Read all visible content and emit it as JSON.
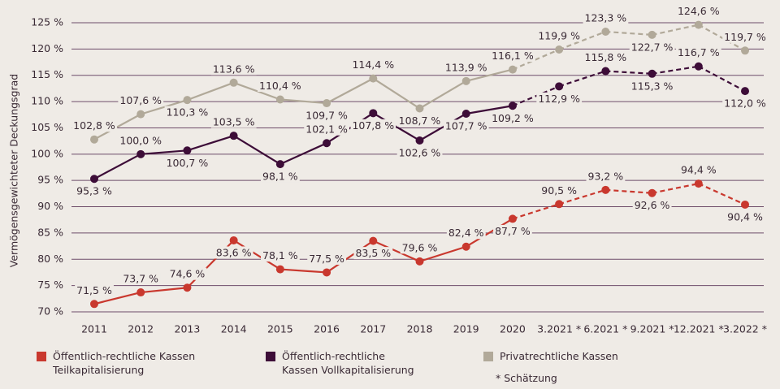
{
  "chart_data": {
    "type": "line",
    "y_label": "Vermögensgewichteter Deckungsgrad",
    "categories": [
      "2011",
      "2012",
      "2013",
      "2014",
      "2015",
      "2016",
      "2017",
      "2018",
      "2019",
      "2020",
      "3.2021 *",
      "6.2021 *",
      "9.2021 *",
      "12.2021 *",
      "3.2022 *"
    ],
    "series": [
      {
        "name": "Öffentlich-rechtliche Kassen Teilkapitalisierung",
        "color": "#c9382e",
        "values": [
          71.5,
          73.7,
          74.6,
          83.6,
          78.1,
          77.5,
          83.5,
          79.6,
          82.4,
          87.7,
          90.5,
          93.2,
          92.6,
          94.4,
          90.4
        ],
        "value_labels": [
          "71,5 %",
          "73,7 %",
          "74,6 %",
          "83,6 %",
          "78,1 %",
          "77,5 %",
          "83,5 %",
          "79,6 %",
          "82,4 %",
          "87,7 %",
          "90,5 %",
          "93,2 %",
          "92,6 %",
          "94,4 %",
          "90,4 %"
        ]
      },
      {
        "name": "Öffentlich-rechtliche Kassen Vollkapitalisierung",
        "color": "#3d0d38",
        "values": [
          95.3,
          100.0,
          100.7,
          103.5,
          98.1,
          102.1,
          107.8,
          102.6,
          107.7,
          109.2,
          112.9,
          115.8,
          115.3,
          116.7,
          112.0
        ],
        "value_labels": [
          "95,3 %",
          "100,0 %",
          "100,7 %",
          "103,5 %",
          "98,1 %",
          "102,1 %",
          "107,8 %",
          "102,6 %",
          "107,7 %",
          "109,2 %",
          "112,9 %",
          "115,8 %",
          "115,3 %",
          "116,7 %",
          "112,0 %"
        ]
      },
      {
        "name": "Privatrechtliche Kassen",
        "color": "#b1a999",
        "values": [
          102.8,
          107.6,
          110.3,
          113.6,
          110.4,
          109.7,
          114.4,
          108.7,
          113.9,
          116.1,
          119.9,
          123.3,
          122.7,
          124.6,
          119.7
        ],
        "value_labels": [
          "102,8 %",
          "107,6 %",
          "110,3 %",
          "113,6 %",
          "110,4 %",
          "109,7 %",
          "114,4 %",
          "108,7 %",
          "113,9 %",
          "116,1 %",
          "119,9 %",
          "123,3 %",
          "122,7 %",
          "124,6 %",
          "119,7 %"
        ]
      }
    ],
    "ylim": [
      70,
      125
    ],
    "yticks": [
      {
        "value": 70,
        "label": "70 %"
      },
      {
        "value": 75,
        "label": "75 %"
      },
      {
        "value": 80,
        "label": "80 %"
      },
      {
        "value": 85,
        "label": "85 %"
      },
      {
        "value": 90,
        "label": "90 %"
      },
      {
        "value": 95,
        "label": "95 %"
      },
      {
        "value": 100,
        "label": "100 %"
      },
      {
        "value": 105,
        "label": "105 %"
      },
      {
        "value": 110,
        "label": "110 %"
      },
      {
        "value": 115,
        "label": "115 %"
      },
      {
        "value": 120,
        "label": "120 %"
      },
      {
        "value": 125,
        "label": "125 %"
      }
    ],
    "grid": true,
    "footnote": "* Schätzung"
  }
}
